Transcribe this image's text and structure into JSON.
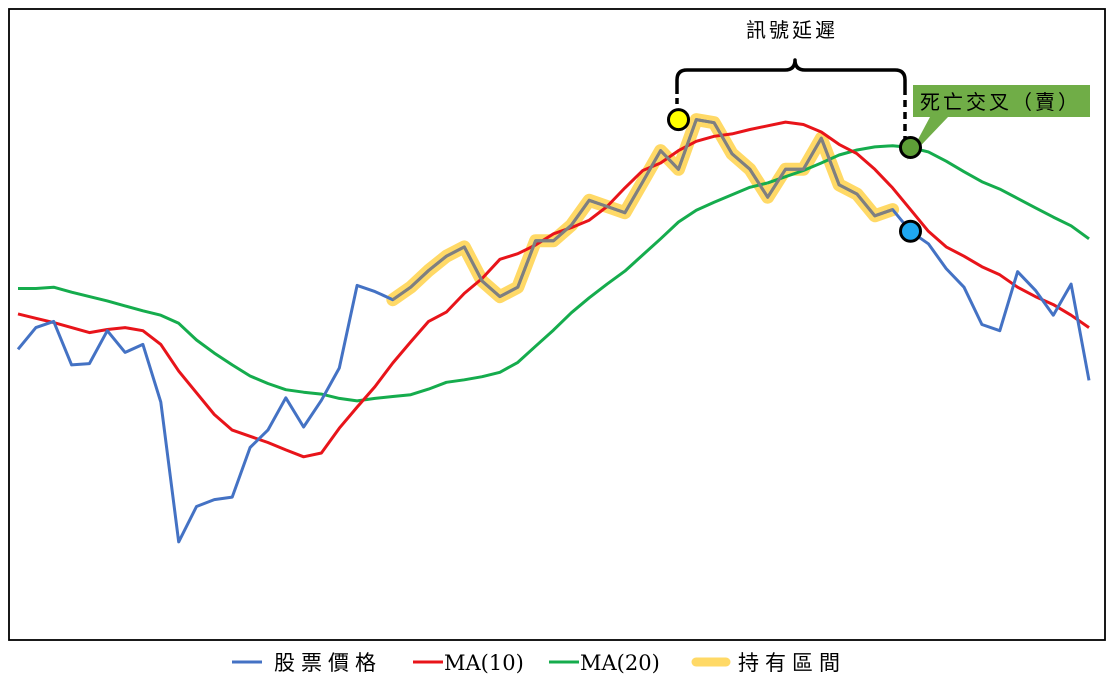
{
  "chart_data": {
    "type": "line",
    "title": "",
    "xlabel": "",
    "ylabel": "",
    "grid": false,
    "legend_position": "bottom",
    "x": [
      0,
      1,
      2,
      3,
      4,
      5,
      6,
      7,
      8,
      9,
      10,
      11,
      12,
      13,
      14,
      15,
      16,
      17,
      18,
      19,
      20,
      21,
      22,
      23,
      24,
      25,
      26,
      27,
      28,
      29,
      30,
      31,
      32,
      33,
      34,
      35,
      36,
      37,
      38,
      39,
      40,
      41,
      42,
      43,
      44,
      45,
      46,
      47,
      48,
      49,
      50,
      51,
      52,
      53,
      54,
      55,
      56,
      57,
      58,
      59,
      60
    ],
    "xlim": [
      0,
      60
    ],
    "ylim": [
      0,
      100
    ],
    "series": [
      {
        "name": "股票價格",
        "color": "#4472C4",
        "values": [
          46.0,
          49.5,
          50.5,
          43.5,
          43.7,
          49.0,
          45.5,
          46.8,
          37.5,
          15.0,
          20.7,
          21.8,
          22.2,
          30.2,
          33.0,
          38.2,
          33.5,
          37.8,
          43.0,
          56.3,
          55.3,
          54.0,
          56.0,
          58.7,
          61.0,
          62.5,
          57.0,
          54.5,
          56.0,
          63.5,
          63.5,
          66.0,
          70.0,
          69.0,
          68.0,
          73.0,
          78.0,
          75.0,
          83.0,
          82.5,
          77.5,
          75.0,
          70.5,
          75.0,
          75.0,
          80.0,
          72.5,
          71.0,
          67.5,
          68.5,
          65.0,
          63.0,
          59.0,
          56.0,
          50.0,
          49.0,
          58.5,
          55.5,
          51.5,
          56.5,
          41.0
        ]
      },
      {
        "name": "MA(10)",
        "color": "#E8141A",
        "values": [
          51.7,
          51.0,
          50.3,
          49.5,
          48.7,
          49.2,
          49.5,
          49.0,
          46.8,
          42.5,
          39.0,
          35.5,
          33.0,
          32.0,
          31.0,
          29.8,
          28.7,
          29.3,
          33.3,
          36.7,
          40.0,
          43.8,
          47.2,
          50.5,
          52.0,
          55.0,
          57.4,
          60.5,
          61.4,
          62.8,
          64.6,
          65.6,
          66.8,
          69.0,
          72.0,
          74.8,
          76.0,
          78.0,
          79.5,
          80.3,
          80.7,
          81.4,
          82.0,
          82.6,
          82.2,
          81.0,
          79.0,
          77.5,
          75.0,
          72.0,
          68.5,
          65.0,
          62.5,
          61.0,
          59.3,
          58.0,
          56.0,
          54.5,
          53.2,
          51.5,
          49.5
        ]
      },
      {
        "name": "MA(20)",
        "color": "#15AC4D",
        "values": [
          55.8,
          55.8,
          56.0,
          55.2,
          54.5,
          53.8,
          53.0,
          52.2,
          51.5,
          50.2,
          47.5,
          45.4,
          43.5,
          41.7,
          40.5,
          39.5,
          39.1,
          38.8,
          38.1,
          37.7,
          38.1,
          38.4,
          38.7,
          39.6,
          40.7,
          41.1,
          41.6,
          42.3,
          43.9,
          46.5,
          49.1,
          51.9,
          54.3,
          56.5,
          58.6,
          61.2,
          63.8,
          66.5,
          68.4,
          69.7,
          70.9,
          72.1,
          72.8,
          73.8,
          74.8,
          76.0,
          77.3,
          78.1,
          78.6,
          78.8,
          78.5,
          77.8,
          76.3,
          74.6,
          73.0,
          71.8,
          70.3,
          68.8,
          67.3,
          65.9,
          63.8
        ]
      }
    ],
    "holding_period": {
      "name": "持有區間",
      "color": "#FFD966",
      "x_start": 21,
      "x_end": 49
    },
    "legend": [
      "股票價格",
      "MA(10)",
      "MA(20)",
      "持有區間"
    ],
    "annotations": {
      "signal_delay": "訊號延遲",
      "death_cross": "死亡交叉（賣）"
    },
    "markers": [
      {
        "x": 37,
        "y": 83.0,
        "color": "#FFFF00"
      },
      {
        "x": 50,
        "y": 78.5,
        "color": "#5E9E37"
      },
      {
        "x": 50,
        "y": 65.0,
        "color": "#1FA7F0"
      }
    ]
  }
}
